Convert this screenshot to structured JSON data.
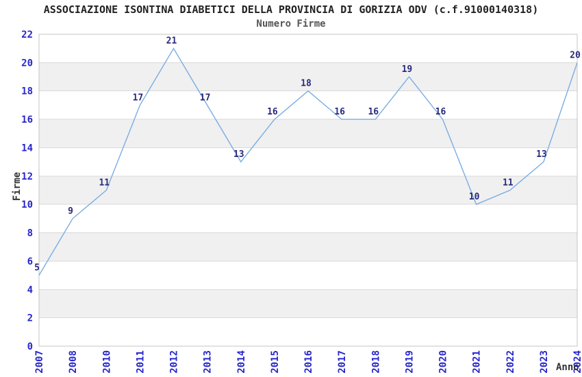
{
  "header": {
    "title": "ASSOCIAZIONE ISONTINA DIABETICI DELLA PROVINCIA DI GORIZIA ODV (c.f.91000140318)",
    "subtitle": "Numero Firme"
  },
  "chart_data": {
    "type": "line",
    "title": "ASSOCIAZIONE ISONTINA DIABETICI DELLA PROVINCIA DI GORIZIA ODV (c.f.91000140318)",
    "subtitle": "Numero Firme",
    "xlabel": "Anno",
    "ylabel": "Firme",
    "categories": [
      "2007",
      "2008",
      "2010",
      "2011",
      "2012",
      "2013",
      "2014",
      "2015",
      "2016",
      "2017",
      "2018",
      "2019",
      "2020",
      "2021",
      "2022",
      "2023",
      "2024"
    ],
    "values": [
      5,
      9,
      11,
      17,
      21,
      17,
      13,
      16,
      18,
      16,
      16,
      19,
      16,
      10,
      11,
      13,
      20
    ],
    "ylim": [
      0,
      22
    ],
    "yticks": [
      0,
      2,
      4,
      6,
      8,
      10,
      12,
      14,
      16,
      18,
      20,
      22
    ],
    "grid": true,
    "legend": "none",
    "shaded_bands": [
      [
        2,
        4
      ],
      [
        6,
        8
      ],
      [
        10,
        12
      ],
      [
        14,
        16
      ],
      [
        18,
        20
      ]
    ],
    "colors": {
      "line": "#79ade2",
      "tick_label": "#2626cc",
      "value_label": "#28287d",
      "band_fill": "#f0f0f0",
      "gridline": "#d9d9d9",
      "plot_border": "#c4c4c4",
      "title": "#222222",
      "subtitle": "#555555",
      "axis_title": "#333333",
      "background": "#ffffff"
    }
  }
}
